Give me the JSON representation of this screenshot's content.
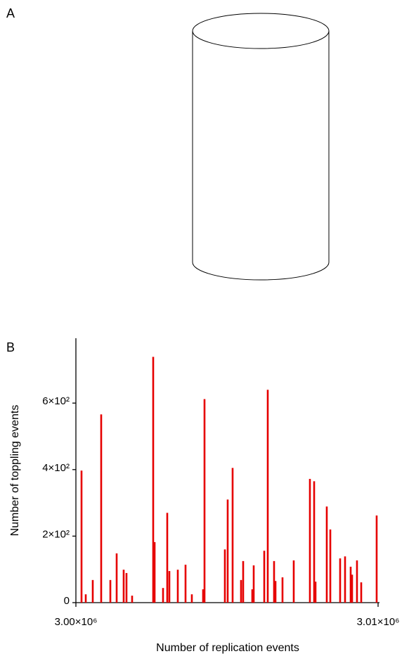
{
  "panel_labels": [
    "A",
    "B"
  ],
  "chart_data": {
    "type": "bar",
    "x_label": "Number of replication events",
    "y_label": "Number of toppling events",
    "color": "#e60000",
    "x": [
      3000186,
      3000326,
      3000558,
      3000837,
      3001140,
      3001349,
      3001581,
      3001674,
      3001860,
      3002558,
      3002605,
      3002884,
      3003023,
      3003093,
      3003372,
      3003628,
      3003837,
      3004209,
      3004256,
      3004930,
      3005023,
      3005186,
      3005465,
      3005535,
      3005837,
      3005884,
      3006233,
      3006349,
      3006558,
      3006605,
      3006837,
      3007209,
      3007744,
      3007884,
      3007930,
      3008302,
      3008419,
      3008744,
      3008907,
      3009093,
      3009140,
      3009302,
      3009442,
      3009953
    ],
    "values": [
      397,
      25,
      68,
      566,
      68,
      148,
      99,
      89,
      21,
      739,
      182,
      44,
      270,
      95,
      99,
      114,
      25,
      40,
      612,
      160,
      310,
      405,
      68,
      125,
      40,
      112,
      156,
      640,
      125,
      65,
      76,
      127,
      372,
      365,
      63,
      289,
      220,
      133,
      139,
      108,
      84,
      127,
      61,
      262
    ],
    "xlim": [
      3000000,
      3010000
    ],
    "xticks": [
      {
        "value": 3000000,
        "label": "3.00×10⁶"
      },
      {
        "value": 3010000,
        "label": "3.01×10⁶"
      }
    ],
    "ylim": [
      0,
      795
    ],
    "yticks": [
      0,
      {
        "value": 200,
        "label": "2×10²"
      },
      {
        "value": 400,
        "label": "4×10²"
      },
      {
        "value": 600,
        "label": "6×10²"
      }
    ]
  }
}
